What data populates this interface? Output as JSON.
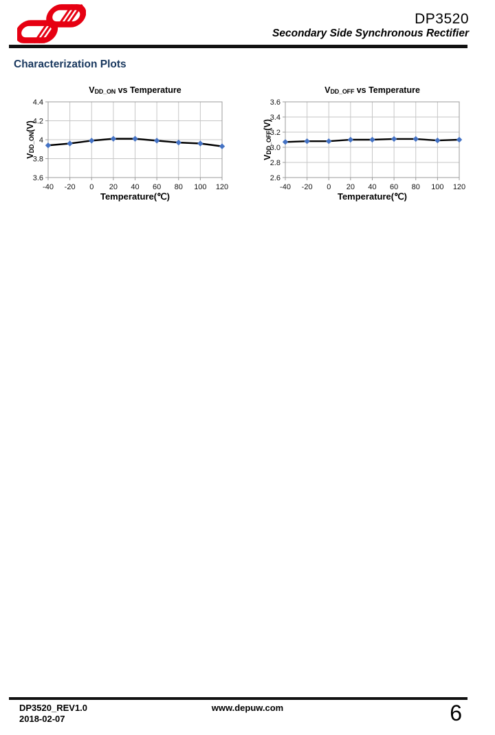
{
  "header": {
    "product": "DP3520",
    "subtitle": "Secondary Side Synchronous Rectifier",
    "logo": {
      "name": "dp-company-logo",
      "color": "#e60012"
    }
  },
  "section": {
    "title": "Characterization Plots",
    "color": "#17365d"
  },
  "chart_data": [
    {
      "type": "line",
      "title_prefix": "V",
      "title_sub": "DD_ON",
      "title_suffix": " vs Temperature",
      "xlabel": "Temperature(℃)",
      "ylabel_prefix": "V",
      "ylabel_sub": "DD_ON",
      "ylabel_suffix": "(V)",
      "x": [
        -40,
        -20,
        0,
        20,
        40,
        60,
        80,
        100,
        120
      ],
      "xtick_labels": [
        "-40",
        "-20",
        "0",
        "20",
        "40",
        "60",
        "80",
        "100",
        "120"
      ],
      "values": [
        3.94,
        3.96,
        3.99,
        4.01,
        4.01,
        3.99,
        3.97,
        3.96,
        3.93
      ],
      "ylim": [
        3.6,
        4.4
      ],
      "ytick_labels": [
        "3.6",
        "3.8",
        "4",
        "4.2",
        "4.4"
      ],
      "grid": true,
      "legend": "none",
      "line_color": "#000000",
      "marker": "diamond",
      "marker_color": "#4472c4",
      "grid_color": "#c6c6c6",
      "axis_color": "#9b9b9b"
    },
    {
      "type": "line",
      "title_prefix": "V",
      "title_sub": "DD_OFF",
      "title_suffix": " vs Temperature",
      "xlabel": "Temperature(℃)",
      "ylabel_prefix": "V",
      "ylabel_sub": "DD_OFF",
      "ylabel_suffix": "(V)",
      "x": [
        -40,
        -20,
        0,
        20,
        40,
        60,
        80,
        100,
        120
      ],
      "xtick_labels": [
        "-40",
        "-20",
        "0",
        "20",
        "40",
        "60",
        "80",
        "100",
        "120"
      ],
      "values": [
        3.07,
        3.08,
        3.08,
        3.1,
        3.1,
        3.11,
        3.11,
        3.09,
        3.1
      ],
      "ylim": [
        2.6,
        3.6
      ],
      "ytick_labels": [
        "2.6",
        "2.8",
        "3.0",
        "3.2",
        "3.4",
        "3.6"
      ],
      "grid": true,
      "legend": "none",
      "line_color": "#000000",
      "marker": "diamond",
      "marker_color": "#4472c4",
      "grid_color": "#c6c6c6",
      "axis_color": "#9b9b9b"
    }
  ],
  "footer": {
    "doc_rev": "DP3520_REV1.0",
    "date": "2018-02-07",
    "website": "www.depuw.com",
    "page_number": "6"
  }
}
